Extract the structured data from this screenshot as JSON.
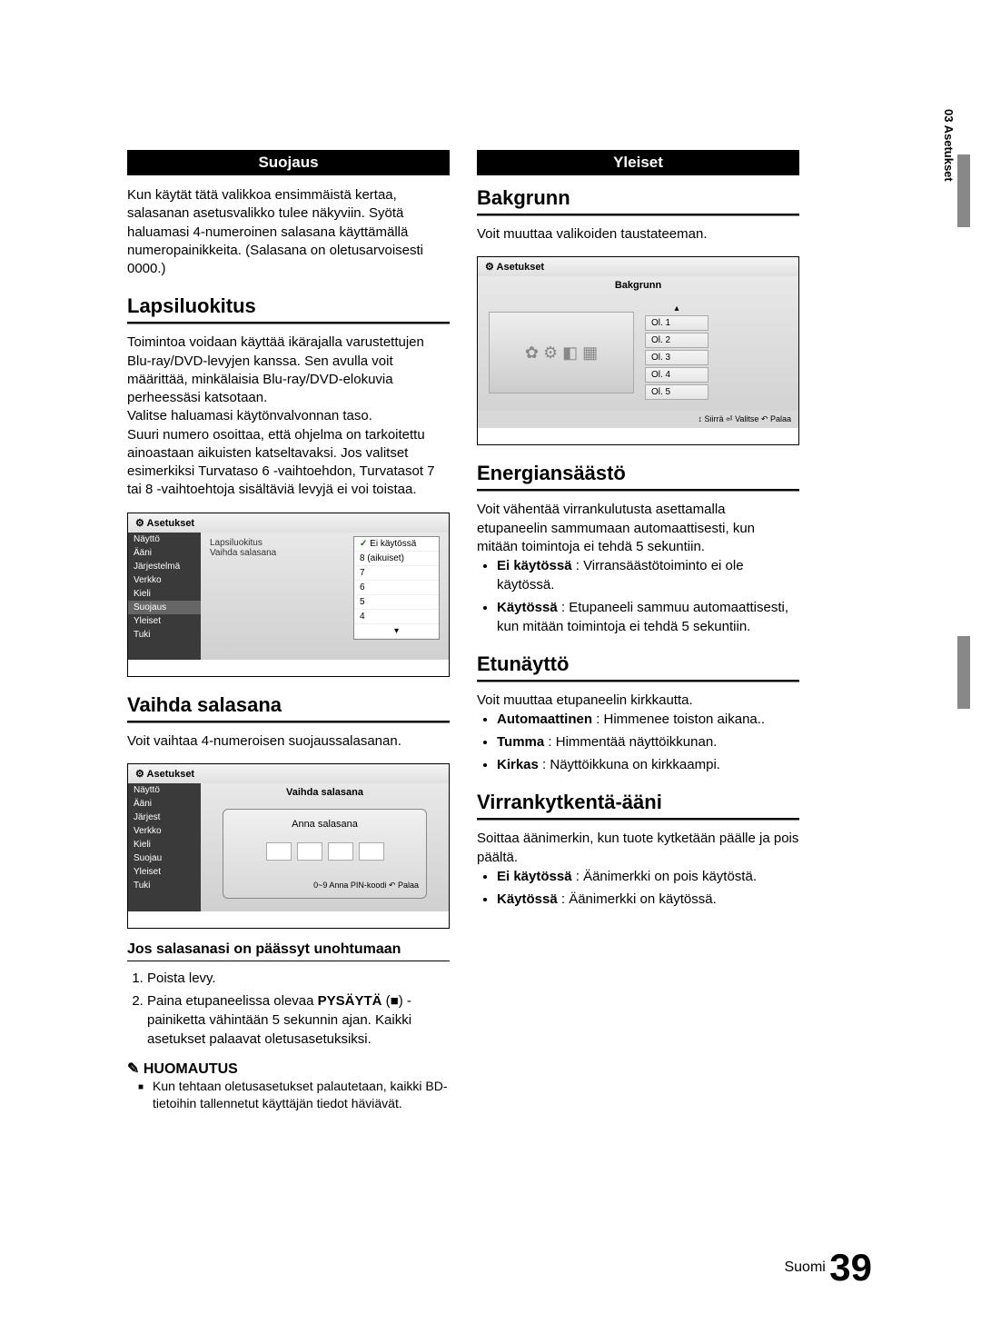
{
  "sectionTab": "03  Asetukset",
  "footer": {
    "lang": "Suomi",
    "page": "39"
  },
  "left": {
    "suojaus": {
      "header": "Suojaus",
      "intro": "Kun käytät tätä valikkoa ensimmäistä kertaa, salasanan asetusvalikko tulee näkyviin. Syötä haluamasi 4-numeroinen salasana käyttämällä numeropainikkeita. (Salasana on oletusarvoisesti 0000.)"
    },
    "lapsiluokitus": {
      "title": "Lapsiluokitus",
      "p1": "Toimintoa voidaan käyttää ikärajalla varustettujen Blu-ray/DVD-levyjen kanssa. Sen avulla voit määrittää, minkälaisia Blu-ray/DVD-elokuvia perheessäsi katsotaan.",
      "p2": "Valitse haluamasi käytönvalvonnan taso.",
      "p3": "Suuri numero osoittaa, että ohjelma on tarkoitettu ainoastaan aikuisten katseltavaksi. Jos valitset esimerkiksi Turvataso 6 -vaihtoehdon, Turvatasot 7 tai 8 -vaihtoehtoja sisältäviä levyjä ei voi toistaa.",
      "screenshot": {
        "title": "Asetukset",
        "sidebar": [
          "Näyttö",
          "Ääni",
          "Järjestelmä",
          "Verkko",
          "Kieli",
          "Suojaus",
          "Yleiset",
          "Tuki"
        ],
        "selected": "Suojaus",
        "items": [
          "Lapsiluokitus",
          "Vaihda salasana"
        ],
        "dropdown": [
          "Ei käytössä",
          "8 (aikuiset)",
          "7",
          "6",
          "5",
          "4"
        ]
      }
    },
    "vaihda": {
      "title": "Vaihda salasana",
      "p": "Voit vaihtaa 4-numeroisen suojaussalasanan.",
      "screenshot": {
        "title": "Asetukset",
        "sidebar": [
          "Näyttö",
          "Ääni",
          "Järjest",
          "Verkko",
          "Kieli",
          "Suojau",
          "Yleiset",
          "Tuki"
        ],
        "centerTitle": "Vaihda salasana",
        "dialogTitle": "Anna salasana",
        "hint": "0~9 Anna PIN-koodi  ↶ Palaa"
      }
    },
    "unohtumaan": {
      "title": "Jos salasanasi on päässyt unohtumaan",
      "step1": "Poista levy.",
      "step2a": "Paina etupaneelissa olevaa ",
      "step2b": "PYSÄYTÄ",
      "step2c": " (■) -painiketta vähintään 5 sekunnin ajan. Kaikki asetukset palaavat oletusasetuksiksi.",
      "noteHead": "✎ HUOMAUTUS",
      "noteBody": "Kun tehtaan oletusasetukset palautetaan, kaikki BD-tietoihin tallennetut käyttäjän tiedot häviävät."
    }
  },
  "right": {
    "yleiset": {
      "header": "Yleiset"
    },
    "bakgrunn": {
      "title": "Bakgrunn",
      "p": "Voit muuttaa valikoiden taustateeman.",
      "screenshot": {
        "title": "Asetukset",
        "center": "Bakgrunn",
        "options": [
          "Ol. 1",
          "Ol. 2",
          "Ol. 3",
          "Ol. 4",
          "Ol. 5"
        ],
        "hint": "↕ Siirrä   ⏎ Valitse   ↶ Palaa"
      }
    },
    "energiansaasto": {
      "title": "Energiansäästö",
      "p": "Voit vähentää virrankulutusta asettamalla etupaneelin sammumaan automaattisesti, kun mitään toimintoja ei tehdä 5 sekuntiin.",
      "b1l": "Ei käytössä",
      "b1t": " : Virransäästötoiminto ei ole käytössä.",
      "b2l": "Käytössä",
      "b2t": " : Etupaneeli sammuu automaattisesti, kun mitään toimintoja ei tehdä 5 sekuntiin."
    },
    "etunaytto": {
      "title": "Etunäyttö",
      "p": "Voit muuttaa etupaneelin kirkkautta.",
      "b1l": "Automaattinen",
      "b1t": " : Himmenee toiston aikana..",
      "b2l": "Tumma",
      "b2t": " : Himmentää näyttöikkunan.",
      "b3l": "Kirkas",
      "b3t": " : Näyttöikkuna on kirkkaampi."
    },
    "virrankytkenta": {
      "title": "Virrankytkentä-ääni",
      "p": "Soittaa äänimerkin, kun tuote kytketään päälle ja pois päältä.",
      "b1l": "Ei käytössä",
      "b1t": " : Äänimerkki on pois käytöstä.",
      "b2l": "Käytössä",
      "b2t": " : Äänimerkki on käytössä."
    }
  }
}
